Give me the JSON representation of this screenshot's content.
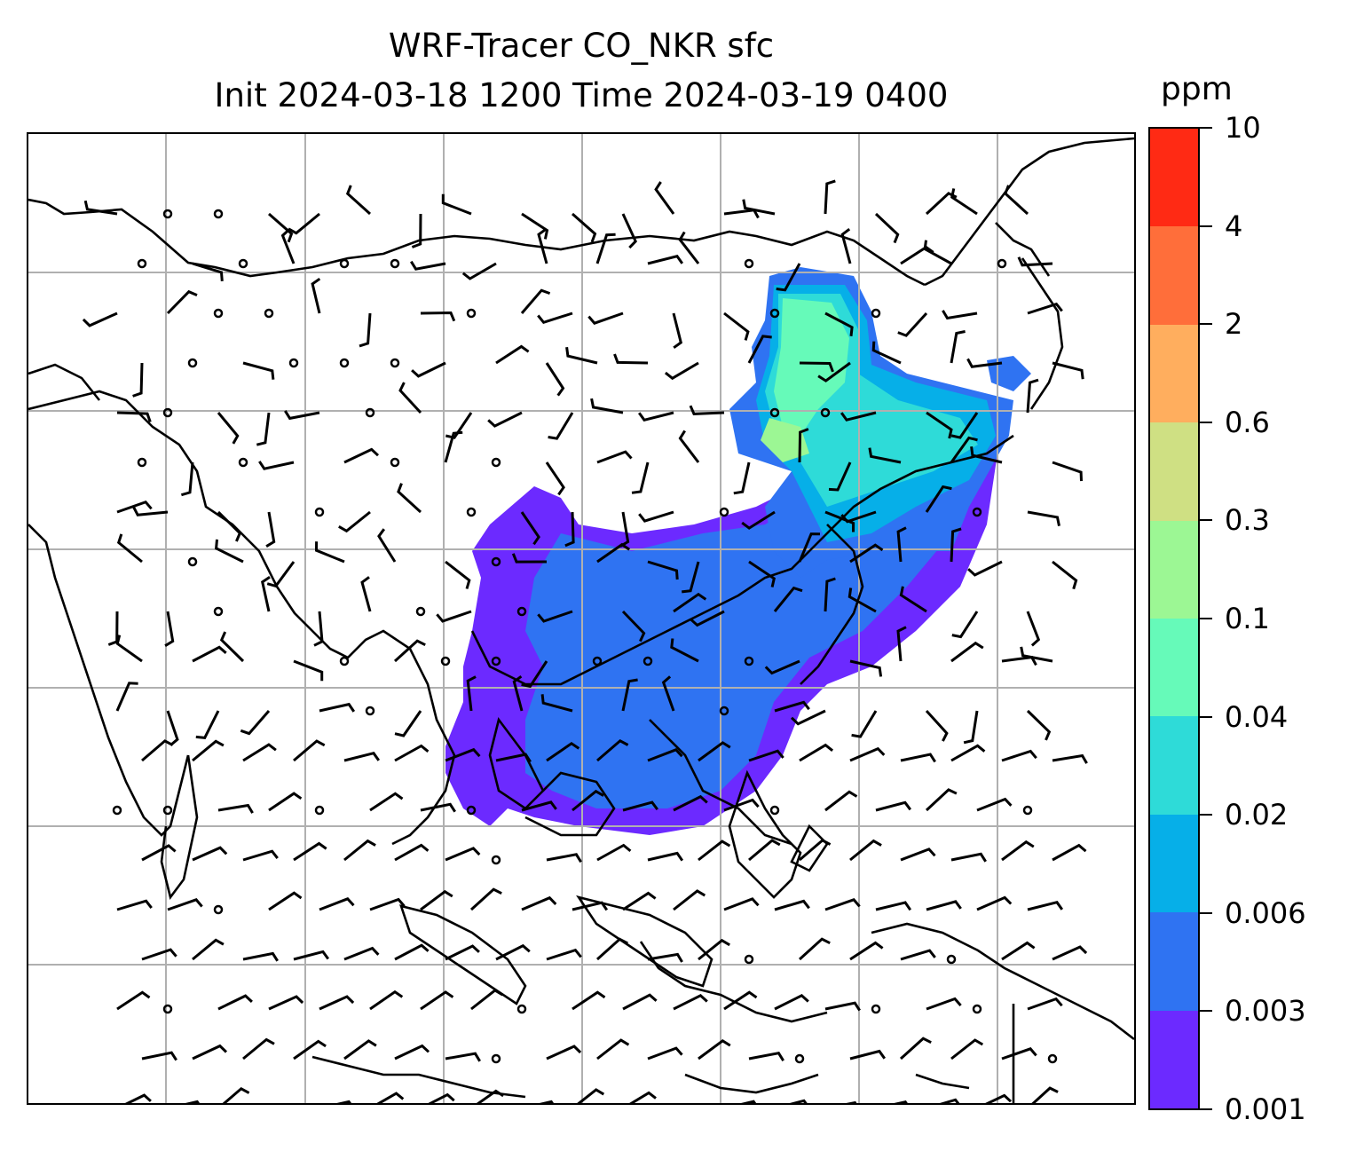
{
  "header": {
    "title_line1": "WRF-Tracer CO_NKR sfc",
    "title_line2": "Init 2024-03-18 1200 Time 2024-03-19 0400"
  },
  "colorbar": {
    "unit": "ppm",
    "ticks": [
      "10",
      "4",
      "2",
      "0.6",
      "0.3",
      "0.1",
      "0.04",
      "0.02",
      "0.006",
      "0.003",
      "0.001"
    ],
    "colors": [
      "#ff2a14",
      "#ff6e3a",
      "#ffae5e",
      "#cfe083",
      "#9cf794",
      "#66fab9",
      "#2edbd8",
      "#06afe8",
      "#2f73f2",
      "#6c2aff"
    ]
  },
  "map": {
    "gridlines": "on",
    "wind_barbs": "on",
    "coastlines": "on",
    "plume_colors": [
      "#6c2aff",
      "#2f73f2",
      "#06afe8",
      "#2edbd8",
      "#66fab9",
      "#9cf794"
    ]
  }
}
